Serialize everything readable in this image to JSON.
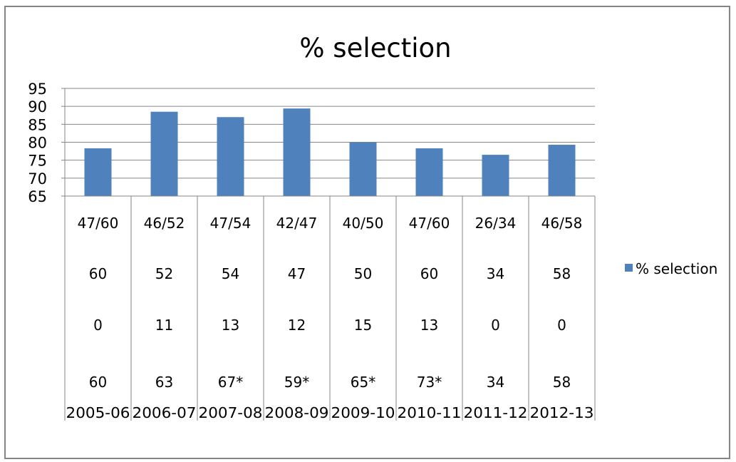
{
  "chart_data": {
    "type": "bar",
    "title": "% selection",
    "xlabel": "",
    "ylabel": "",
    "ylim": [
      65,
      95
    ],
    "yticks": [
      95,
      90,
      85,
      80,
      75,
      70,
      65
    ],
    "grid": true,
    "legend_position": "right",
    "colors": {
      "bar": "#4f81bd",
      "grid": "#868686",
      "frame": "#858585"
    },
    "categories": [
      "2005-06",
      "2006-07",
      "2007-08",
      "2008-09",
      "2009-10",
      "2010-11",
      "2011-12",
      "2012-13"
    ],
    "series": [
      {
        "name": "% selection",
        "values": [
          78.3,
          88.5,
          87,
          89.4,
          80,
          78.3,
          76.5,
          79.3
        ]
      }
    ],
    "table_rows": [
      [
        "47/60",
        "46/52",
        "47/54",
        "42/47",
        "40/50",
        "47/60",
        "26/34",
        "46/58"
      ],
      [
        "60",
        "52",
        "54",
        "47",
        "50",
        "60",
        "34",
        "58"
      ],
      [
        "0",
        "11",
        "13",
        "12",
        "15",
        "13",
        "0",
        "0"
      ],
      [
        "60",
        "63",
        "67*",
        "59*",
        "65*",
        "73*",
        "34",
        "58"
      ]
    ]
  }
}
